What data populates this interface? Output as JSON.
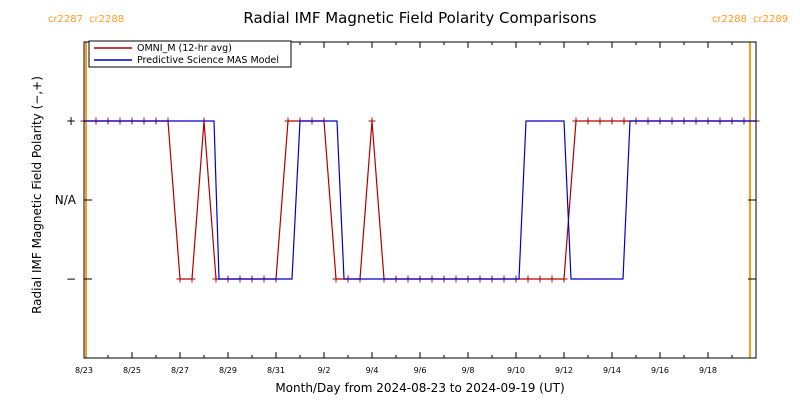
{
  "chart_data": {
    "type": "line",
    "title": "Radial IMF Magnetic Field Polarity Comparisons",
    "xlabel": "Month/Day from 2024-08-23 to 2024-09-19 (UT)",
    "ylabel": "Radial IMF Magnetic Field Polarity (−,+)",
    "xlim": [
      "2024-08-23",
      "2024-09-20"
    ],
    "ylim": [
      -2,
      2
    ],
    "x_tick_labels": [
      "8/23",
      "8/25",
      "8/27",
      "8/29",
      "8/31",
      "9/2",
      "9/4",
      "9/6",
      "9/8",
      "9/10",
      "9/12",
      "9/14",
      "9/16",
      "9/18"
    ],
    "x_tick_dates": [
      "2024-08-23",
      "2024-08-25",
      "2024-08-27",
      "2024-08-29",
      "2024-08-31",
      "2024-09-02",
      "2024-09-04",
      "2024-09-06",
      "2024-09-08",
      "2024-09-10",
      "2024-09-12",
      "2024-09-14",
      "2024-09-16",
      "2024-09-18"
    ],
    "y_tick_labels": [
      {
        "value": 1,
        "label": "+"
      },
      {
        "value": 0,
        "label": "N/A"
      },
      {
        "value": -1,
        "label": "−"
      }
    ],
    "legend_position": "top-left",
    "series": [
      {
        "name": "OMNI_M (12-hr avg)",
        "color": "#b00000",
        "marker": "plus",
        "x": [
          "2024-08-23T00:00",
          "2024-08-23T12:00",
          "2024-08-24T00:00",
          "2024-08-24T12:00",
          "2024-08-25T00:00",
          "2024-08-25T12:00",
          "2024-08-26T00:00",
          "2024-08-26T12:00",
          "2024-08-27T00:00",
          "2024-08-27T12:00",
          "2024-08-28T00:00",
          "2024-08-28T12:00",
          "2024-08-29T00:00",
          "2024-08-29T12:00",
          "2024-08-30T00:00",
          "2024-08-30T12:00",
          "2024-08-31T00:00",
          "2024-08-31T12:00",
          "2024-09-01T00:00",
          "2024-09-01T12:00",
          "2024-09-02T00:00",
          "2024-09-02T12:00",
          "2024-09-03T00:00",
          "2024-09-03T12:00",
          "2024-09-04T00:00",
          "2024-09-04T12:00",
          "2024-09-05T00:00",
          "2024-09-05T12:00",
          "2024-09-06T00:00",
          "2024-09-06T12:00",
          "2024-09-07T00:00",
          "2024-09-07T12:00",
          "2024-09-08T00:00",
          "2024-09-08T12:00",
          "2024-09-09T00:00",
          "2024-09-09T12:00",
          "2024-09-10T00:00",
          "2024-09-10T12:00",
          "2024-09-11T00:00",
          "2024-09-11T12:00",
          "2024-09-12T00:00",
          "2024-09-12T12:00",
          "2024-09-13T00:00",
          "2024-09-13T12:00",
          "2024-09-14T00:00",
          "2024-09-14T12:00",
          "2024-09-15T00:00",
          "2024-09-15T12:00",
          "2024-09-16T00:00",
          "2024-09-16T12:00",
          "2024-09-17T00:00",
          "2024-09-17T12:00",
          "2024-09-18T00:00",
          "2024-09-18T12:00",
          "2024-09-19T00:00",
          "2024-09-19T12:00",
          "2024-09-20T00:00"
        ],
        "y": [
          1,
          1,
          1,
          1,
          1,
          1,
          1,
          1,
          -1,
          -1,
          1,
          -1,
          -1,
          -1,
          -1,
          -1,
          -1,
          1,
          1,
          1,
          1,
          -1,
          -1,
          -1,
          1,
          -1,
          -1,
          -1,
          -1,
          -1,
          -1,
          -1,
          -1,
          -1,
          -1,
          -1,
          -1,
          -1,
          -1,
          -1,
          -1,
          1,
          1,
          1,
          1,
          1,
          1,
          1,
          1,
          1,
          1,
          1,
          1,
          1,
          1,
          1,
          1
        ]
      },
      {
        "name": "Predictive Science MAS Model",
        "color": "#0000cc",
        "marker": "none",
        "x": [
          "2024-08-23T00:00",
          "2024-08-28T10:00",
          "2024-08-28T15:00",
          "2024-08-31T16:00",
          "2024-09-01T00:00",
          "2024-09-02T13:00",
          "2024-09-02T20:00",
          "2024-09-10T03:00",
          "2024-09-10T10:00",
          "2024-09-12T00:00",
          "2024-09-12T07:00",
          "2024-09-14T11:00",
          "2024-09-14T18:00",
          "2024-09-20T00:00"
        ],
        "y": [
          1,
          1,
          -1,
          -1,
          1,
          1,
          -1,
          -1,
          1,
          1,
          -1,
          -1,
          1,
          1
        ]
      }
    ],
    "carrington_markers": [
      {
        "date": "2024-08-23T02:00",
        "left_label": "cr2287",
        "right_label": "cr2288"
      },
      {
        "date": "2024-09-19T18:00",
        "left_label": "cr2288",
        "right_label": "cr2289"
      }
    ],
    "carrington_color": "#ff9a1e"
  }
}
